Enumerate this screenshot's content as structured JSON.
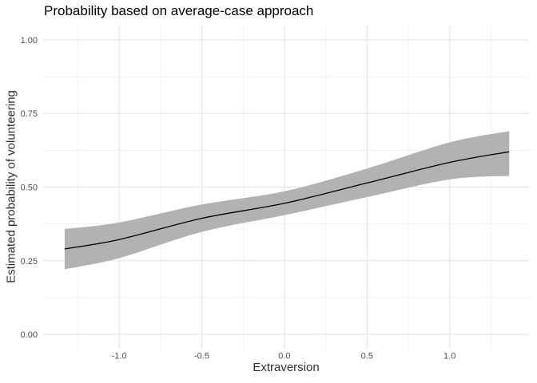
{
  "chart_data": {
    "type": "line",
    "title": "Probability based on average-case approach",
    "xlabel": "Extraversion",
    "ylabel": "Estimated probability of volunteering",
    "x": [
      -1.33,
      -1.0,
      -0.5,
      0.0,
      0.5,
      1.0,
      1.36
    ],
    "series": [
      {
        "name": "estimated_probability",
        "values": [
          0.29,
          0.322,
          0.394,
          0.445,
          0.514,
          0.584,
          0.62
        ]
      },
      {
        "name": "ci_lower",
        "values": [
          0.221,
          0.259,
          0.348,
          0.405,
          0.466,
          0.526,
          0.538
        ]
      },
      {
        "name": "ci_upper",
        "values": [
          0.358,
          0.38,
          0.441,
          0.486,
          0.563,
          0.652,
          0.69
        ]
      }
    ],
    "xlim": [
      -1.46,
      1.48
    ],
    "ylim": [
      -0.05,
      1.05
    ],
    "x_ticks": {
      "values": [
        -1.0,
        -0.5,
        0.0,
        0.5,
        1.0
      ],
      "labels": [
        "-1.0",
        "-0.5",
        "0.0",
        "0.5",
        "1.0"
      ]
    },
    "y_ticks": {
      "values": [
        0.0,
        0.25,
        0.5,
        0.75,
        1.0
      ],
      "labels": [
        "0.00",
        "0.25",
        "0.50",
        "0.75",
        "1.00"
      ]
    },
    "x_minor_ticks": [
      -1.25,
      -0.75,
      -0.25,
      0.25,
      0.75,
      1.25
    ],
    "y_minor_ticks": [
      0.125,
      0.375,
      0.625,
      0.875
    ],
    "grid": "on",
    "legend": "none",
    "colors": {
      "fit_line": "#000000",
      "ribbon": "#b2b2b2",
      "grid_major": "#e6e6e6",
      "grid_minor": "#f1f1f1",
      "tick_label": "#4d4d4d",
      "axis_title": "#303030",
      "title": "#000000",
      "background": "#ffffff"
    }
  }
}
